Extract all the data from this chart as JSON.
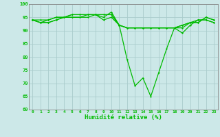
{
  "xlabel": "Humidité relative (%)",
  "xlim": [
    -0.5,
    23.5
  ],
  "ylim": [
    60,
    100
  ],
  "yticks": [
    60,
    65,
    70,
    75,
    80,
    85,
    90,
    95,
    100
  ],
  "xticks": [
    0,
    1,
    2,
    3,
    4,
    5,
    6,
    7,
    8,
    9,
    10,
    11,
    12,
    13,
    14,
    15,
    16,
    17,
    18,
    19,
    20,
    21,
    22,
    23
  ],
  "bg_color": "#cce8e8",
  "grid_color": "#aacccc",
  "line_color": "#00bb00",
  "series": [
    [
      94,
      93,
      93,
      94,
      95,
      95,
      95,
      95,
      96,
      95,
      97,
      92,
      91,
      91,
      91,
      91,
      91,
      91,
      91,
      92,
      93,
      94,
      94,
      93
    ],
    [
      94,
      93,
      93,
      94,
      95,
      95,
      95,
      96,
      96,
      94,
      95,
      92,
      79,
      69,
      72,
      65,
      74,
      83,
      91,
      89,
      92,
      94,
      94,
      93
    ],
    [
      94,
      93,
      94,
      95,
      95,
      96,
      96,
      96,
      96,
      96,
      96,
      92,
      91,
      91,
      91,
      91,
      91,
      91,
      91,
      91,
      93,
      93,
      95,
      94
    ],
    [
      94,
      94,
      94,
      95,
      95,
      96,
      96,
      96,
      96,
      96,
      96,
      92,
      91,
      91,
      91,
      91,
      91,
      91,
      91,
      92,
      93,
      93,
      95,
      94
    ]
  ]
}
